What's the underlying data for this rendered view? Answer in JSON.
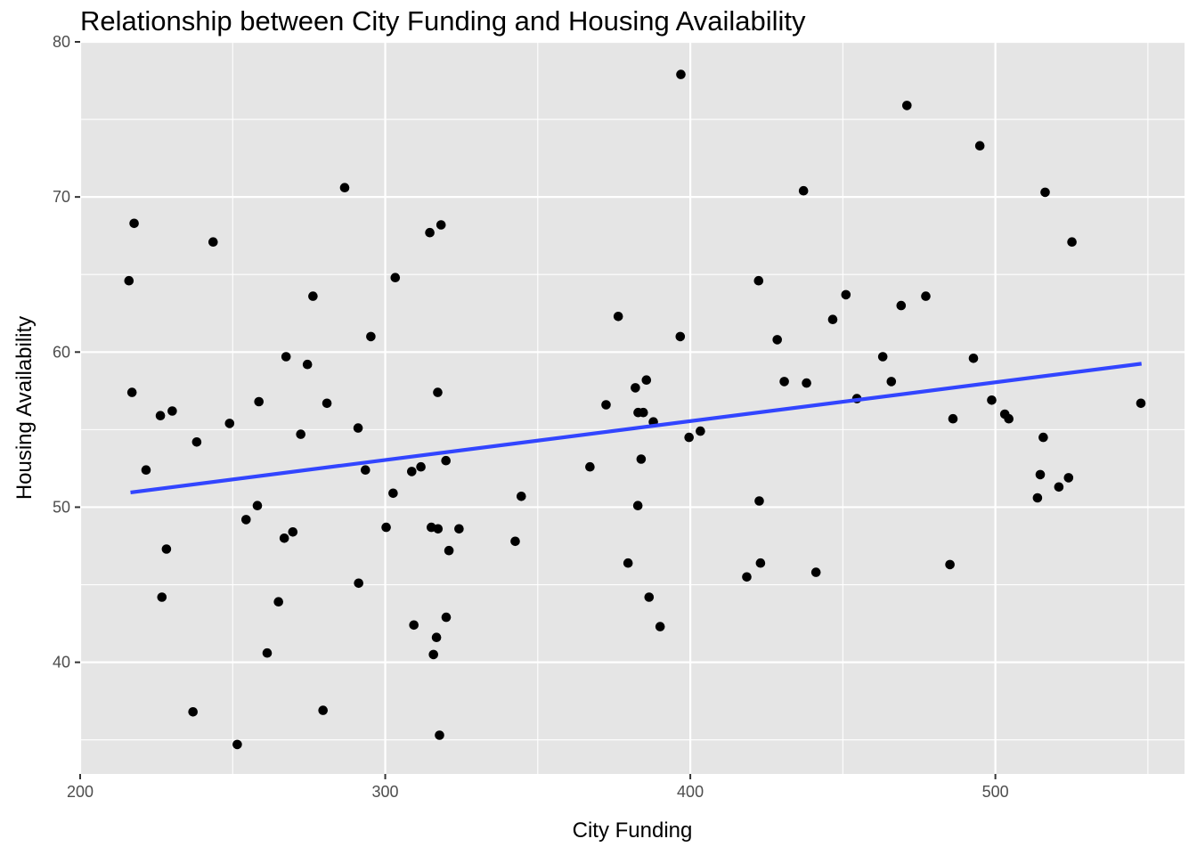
{
  "chart_data": {
    "type": "scatter",
    "title": "Relationship between City Funding and Housing Availability",
    "xlabel": "City Funding",
    "ylabel": "Housing Availability",
    "xlim": [
      200,
      562
    ],
    "ylim": [
      32.8,
      80
    ],
    "x_ticks": [
      200,
      300,
      400,
      500
    ],
    "y_ticks": [
      40,
      50,
      60,
      70,
      80
    ],
    "grid": true,
    "background": "#e5e5e5",
    "point_color": "#000000",
    "trend_line": {
      "type": "linear",
      "color": "#3245ff",
      "x": [
        216.5,
        547.9
      ],
      "y": [
        50.95,
        59.25
      ]
    },
    "points": [
      [
        216.0,
        64.6
      ],
      [
        217.0,
        57.4
      ],
      [
        217.7,
        68.3
      ],
      [
        221.6,
        52.4
      ],
      [
        226.3,
        55.9
      ],
      [
        226.8,
        44.2
      ],
      [
        228.3,
        47.3
      ],
      [
        230.2,
        56.2
      ],
      [
        237.0,
        36.8
      ],
      [
        238.2,
        54.2
      ],
      [
        243.6,
        67.1
      ],
      [
        249.0,
        55.4
      ],
      [
        251.5,
        34.7
      ],
      [
        254.4,
        49.2
      ],
      [
        258.1,
        50.1
      ],
      [
        258.6,
        56.8
      ],
      [
        261.3,
        40.6
      ],
      [
        265.0,
        43.9
      ],
      [
        266.9,
        48.0
      ],
      [
        267.5,
        59.7
      ],
      [
        269.7,
        48.4
      ],
      [
        272.3,
        54.7
      ],
      [
        274.5,
        59.2
      ],
      [
        276.3,
        63.6
      ],
      [
        279.6,
        36.9
      ],
      [
        280.9,
        56.7
      ],
      [
        286.7,
        70.6
      ],
      [
        291.1,
        55.1
      ],
      [
        291.3,
        45.1
      ],
      [
        293.5,
        52.4
      ],
      [
        295.3,
        61.0
      ],
      [
        300.3,
        48.7
      ],
      [
        302.6,
        50.9
      ],
      [
        303.3,
        64.8
      ],
      [
        308.7,
        52.3
      ],
      [
        309.4,
        42.4
      ],
      [
        311.7,
        52.6
      ],
      [
        314.6,
        67.7
      ],
      [
        315.1,
        48.7
      ],
      [
        315.8,
        40.5
      ],
      [
        316.8,
        41.6
      ],
      [
        317.2,
        57.4
      ],
      [
        317.3,
        48.6
      ],
      [
        317.8,
        35.3
      ],
      [
        318.3,
        68.2
      ],
      [
        319.9,
        53.0
      ],
      [
        320.0,
        42.9
      ],
      [
        320.9,
        47.2
      ],
      [
        324.2,
        48.6
      ],
      [
        342.6,
        47.8
      ],
      [
        344.6,
        50.7
      ],
      [
        367.1,
        52.6
      ],
      [
        372.4,
        56.6
      ],
      [
        376.4,
        62.3
      ],
      [
        379.6,
        46.4
      ],
      [
        382.0,
        57.7
      ],
      [
        382.8,
        50.1
      ],
      [
        382.9,
        56.1
      ],
      [
        383.9,
        53.1
      ],
      [
        384.6,
        56.1
      ],
      [
        385.6,
        58.2
      ],
      [
        386.5,
        44.2
      ],
      [
        387.9,
        55.5
      ],
      [
        390.1,
        42.3
      ],
      [
        396.7,
        61.0
      ],
      [
        396.9,
        77.9
      ],
      [
        399.6,
        54.5
      ],
      [
        403.3,
        54.9
      ],
      [
        418.5,
        45.5
      ],
      [
        422.4,
        64.6
      ],
      [
        422.6,
        50.4
      ],
      [
        423.0,
        46.4
      ],
      [
        428.5,
        60.8
      ],
      [
        430.8,
        58.1
      ],
      [
        437.1,
        70.4
      ],
      [
        438.1,
        58.0
      ],
      [
        441.2,
        45.8
      ],
      [
        446.7,
        62.1
      ],
      [
        451.0,
        63.7
      ],
      [
        454.6,
        57.0
      ],
      [
        463.1,
        59.7
      ],
      [
        465.9,
        58.1
      ],
      [
        469.1,
        63.0
      ],
      [
        471.0,
        75.9
      ],
      [
        477.2,
        63.6
      ],
      [
        485.1,
        46.3
      ],
      [
        486.1,
        55.7
      ],
      [
        492.8,
        59.6
      ],
      [
        494.9,
        73.3
      ],
      [
        498.8,
        56.9
      ],
      [
        503.1,
        56.0
      ],
      [
        504.4,
        55.7
      ],
      [
        513.8,
        50.6
      ],
      [
        514.7,
        52.1
      ],
      [
        515.7,
        54.5
      ],
      [
        516.3,
        70.3
      ],
      [
        520.8,
        51.3
      ],
      [
        524.0,
        51.9
      ],
      [
        525.1,
        67.1
      ],
      [
        547.7,
        56.7
      ]
    ]
  }
}
